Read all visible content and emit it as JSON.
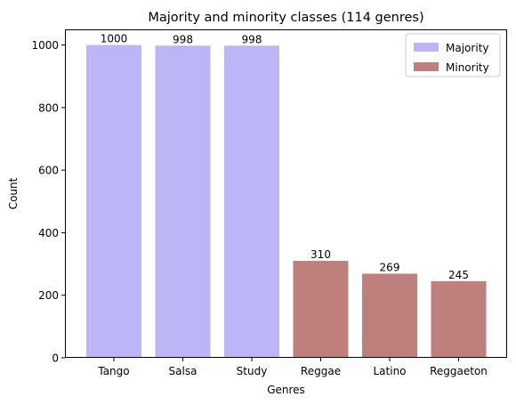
{
  "chart_data": {
    "type": "bar",
    "title": "Majority and minority classes (114 genres)",
    "xlabel": "Genres",
    "ylabel": "Count",
    "ylim": [
      0,
      1050
    ],
    "yticks": [
      0,
      200,
      400,
      600,
      800,
      1000
    ],
    "grid": false,
    "legend_position": "top-right",
    "categories": [
      "Tango",
      "Salsa",
      "Study",
      "Reggae",
      "Latino",
      "Reggaeton"
    ],
    "series": [
      {
        "name": "Majority",
        "color": "#bcb5f6",
        "points": [
          {
            "category": "Tango",
            "value": 1000
          },
          {
            "category": "Salsa",
            "value": 998
          },
          {
            "category": "Study",
            "value": 998
          }
        ]
      },
      {
        "name": "Minority",
        "color": "#bf7f7d",
        "points": [
          {
            "category": "Reggae",
            "value": 310
          },
          {
            "category": "Latino",
            "value": 269
          },
          {
            "category": "Reggaeton",
            "value": 245
          }
        ]
      }
    ]
  }
}
